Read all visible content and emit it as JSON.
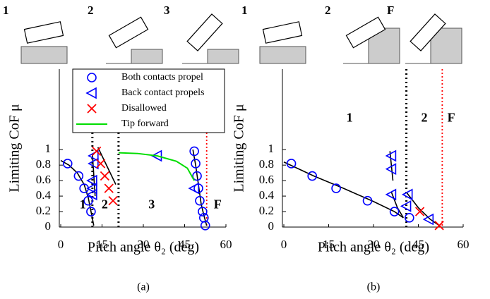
{
  "chart_data": [
    {
      "type": "scatter",
      "caption": "(a)",
      "xlabel": "Pitch angle θ₂ (deg)",
      "ylabel": "Limiting CoF μ",
      "xlim": [
        0,
        60
      ],
      "ylim": [
        0,
        2.04
      ],
      "xticks": [
        0,
        15,
        30,
        45,
        60
      ],
      "yticks": [
        0,
        0.2,
        0.4,
        0.6,
        0.8,
        1
      ],
      "legend": "upper-left",
      "series": [
        {
          "name": "Both contacts propel",
          "color": "#0000ff",
          "marker": "circle",
          "x": [
            2.5,
            6.5,
            8.5,
            10,
            11,
            48.5,
            49,
            49.5,
            50,
            50.5,
            51.5,
            52,
            52.5
          ],
          "values": [
            0.82,
            0.66,
            0.5,
            0.34,
            0.2,
            0.98,
            0.82,
            0.66,
            0.5,
            0.34,
            0.2,
            0.12,
            0.02
          ]
        },
        {
          "name": "Back contact propels",
          "color": "#0000ff",
          "marker": "triangle",
          "x": [
            12,
            12,
            11.5,
            11.5,
            11.5,
            35,
            48.5
          ],
          "values": [
            0.92,
            0.82,
            0.6,
            0.5,
            0.42,
            0.92,
            0.5
          ]
        },
        {
          "name": "Disallowed",
          "color": "#ff0000",
          "marker": "x",
          "x": [
            13,
            14.5,
            16,
            17.5,
            19
          ],
          "values": [
            0.98,
            0.82,
            0.66,
            0.5,
            0.34
          ]
        },
        {
          "name": "Tip forward",
          "color": "#00dd00",
          "marker": "line",
          "x": [
            21,
            28,
            35,
            42,
            46,
            48.5
          ],
          "values": [
            0.96,
            0.95,
            0.92,
            0.85,
            0.76,
            0.6
          ]
        }
      ],
      "fit_lines": [
        {
          "x": [
            0,
            3,
            6,
            8.5,
            10,
            11,
            12
          ],
          "y": [
            0.86,
            0.8,
            0.7,
            0.55,
            0.38,
            0.2,
            0.02
          ]
        },
        {
          "x": [
            11.5,
            12.5
          ],
          "y": [
            0.95,
            0.4
          ]
        },
        {
          "x": [
            13.5,
            20
          ],
          "y": [
            1.03,
            0.55
          ]
        },
        {
          "x": [
            48,
            49,
            50,
            51,
            52,
            53
          ],
          "y": [
            1,
            0.8,
            0.55,
            0.3,
            0.15,
            0.02
          ]
        }
      ],
      "vlines": [
        {
          "x": 11.5,
          "color": "#000000"
        },
        {
          "x": 21,
          "color": "#000000"
        },
        {
          "x": 53,
          "color": "#ff0000"
        }
      ],
      "region_labels": [
        {
          "text": "1",
          "color": "#000000"
        },
        {
          "text": "2",
          "color": "#000000"
        },
        {
          "text": "3",
          "color": "#66bb66"
        },
        {
          "text": "F",
          "color": "#dd2222"
        }
      ],
      "stage_labels": [
        {
          "text": "1",
          "color": "#000000"
        },
        {
          "text": "2",
          "color": "#000000"
        },
        {
          "text": "3",
          "color": "#66bb66"
        }
      ]
    },
    {
      "type": "scatter",
      "caption": "(b)",
      "xlabel": "Pitch angle θ₂ (deg)",
      "ylabel": "Limiting CoF μ",
      "xlim": [
        0,
        60
      ],
      "ylim": [
        0,
        2.04
      ],
      "xticks": [
        0,
        15,
        30,
        45,
        60
      ],
      "yticks": [
        0,
        0.2,
        0.4,
        0.6,
        0.8,
        1
      ],
      "series": [
        {
          "color": "#0000ff",
          "marker": "circle",
          "x": [
            2.5,
            9.5,
            17.5,
            28,
            37,
            42
          ],
          "values": [
            0.82,
            0.66,
            0.5,
            0.34,
            0.2,
            0.12
          ]
        },
        {
          "color": "#0000ff",
          "marker": "triangle",
          "x": [
            36,
            36,
            36,
            41.5,
            41,
            48.5
          ],
          "values": [
            0.92,
            0.75,
            0.42,
            0.42,
            0.27,
            0.1
          ]
        },
        {
          "color": "#ff0000",
          "marker": "x",
          "x": [
            45.5,
            52
          ],
          "values": [
            0.2,
            0.02
          ]
        }
      ],
      "fit_lines": [
        {
          "x": [
            0,
            10,
            20,
            30,
            37,
            40
          ],
          "y": [
            0.84,
            0.66,
            0.5,
            0.33,
            0.2,
            0.12
          ]
        },
        {
          "x": [
            35.5,
            36.5
          ],
          "y": [
            0.98,
            0.6
          ]
        },
        {
          "x": [
            36,
            38,
            40
          ],
          "y": [
            0.45,
            0.25,
            0.12
          ]
        },
        {
          "x": [
            41,
            45,
            49,
            52
          ],
          "y": [
            0.45,
            0.25,
            0.1,
            0.02
          ]
        }
      ],
      "vlines": [
        {
          "x": 41,
          "color": "#000000"
        },
        {
          "x": 53,
          "color": "#ff0000"
        }
      ],
      "region_labels": [
        {
          "text": "1",
          "color": "#000000"
        },
        {
          "text": "2",
          "color": "#000000"
        },
        {
          "text": "F",
          "color": "#dd2222"
        }
      ],
      "stage_labels": [
        {
          "text": "1",
          "color": "#000000"
        },
        {
          "text": "2",
          "color": "#000000"
        },
        {
          "text": "F",
          "color": "#dd2222"
        }
      ]
    }
  ]
}
